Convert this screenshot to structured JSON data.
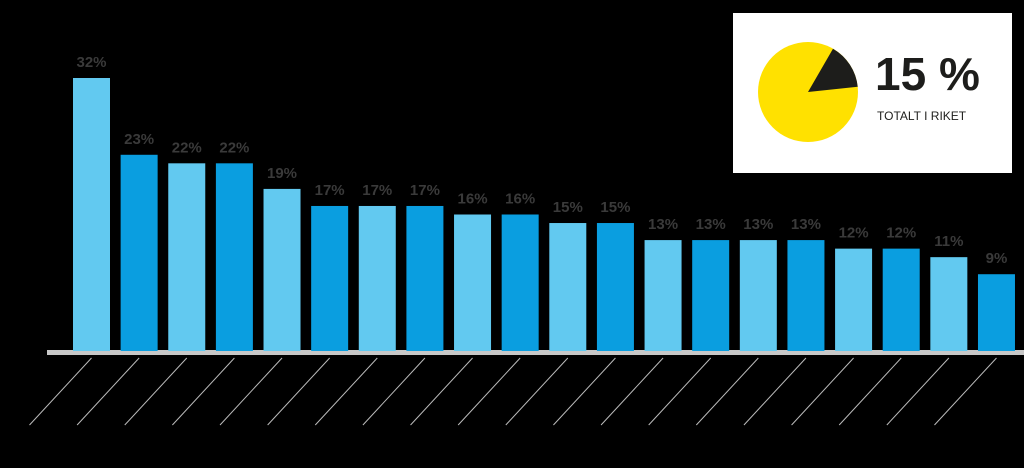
{
  "chart_data": {
    "type": "bar",
    "categories": [
      null,
      null,
      null,
      null,
      null,
      null,
      null,
      null,
      null,
      null,
      null,
      null,
      null,
      null,
      null,
      null,
      null,
      null,
      null,
      null
    ],
    "values": [
      32,
      23,
      22,
      22,
      19,
      17,
      17,
      17,
      16,
      16,
      15,
      15,
      13,
      13,
      13,
      13,
      12,
      12,
      11,
      9
    ],
    "value_labels": [
      "32%",
      "23%",
      "22%",
      "22%",
      "19%",
      "17%",
      "17%",
      "17%",
      "16%",
      "16%",
      "15%",
      "15%",
      "13%",
      "13%",
      "13%",
      "13%",
      "12%",
      "12%",
      "11%",
      "9%"
    ],
    "colors": [
      "#62c9f0",
      "#0a9ee0"
    ],
    "inset": {
      "type": "pie",
      "values": [
        15
      ],
      "value_labels": [
        "15 %"
      ],
      "label": "TOTALT I RIKET",
      "colors": [
        "#1d1d1b",
        "#ffe100"
      ]
    }
  }
}
